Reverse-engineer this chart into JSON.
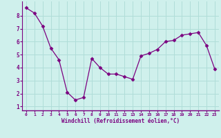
{
  "x": [
    0,
    1,
    2,
    3,
    4,
    5,
    6,
    7,
    8,
    9,
    10,
    11,
    12,
    13,
    14,
    15,
    16,
    17,
    18,
    19,
    20,
    21,
    22,
    23
  ],
  "y": [
    8.6,
    8.2,
    7.2,
    5.5,
    4.6,
    2.1,
    1.5,
    1.7,
    4.7,
    4.0,
    3.5,
    3.5,
    3.3,
    3.1,
    4.9,
    5.1,
    5.4,
    6.0,
    6.1,
    6.5,
    6.6,
    6.7,
    5.7,
    3.9
  ],
  "line_color": "#7B0080",
  "marker": "D",
  "marker_size": 2.5,
  "bg_color": "#cff0ec",
  "grid_color": "#b0ddd8",
  "xlabel": "Windchill (Refroidissement éolien,°C)",
  "xlim": [
    -0.5,
    23.5
  ],
  "ylim": [
    0.7,
    9.1
  ],
  "yticks": [
    1,
    2,
    3,
    4,
    5,
    6,
    7,
    8
  ],
  "xticks": [
    0,
    1,
    2,
    3,
    4,
    5,
    6,
    7,
    8,
    9,
    10,
    11,
    12,
    13,
    14,
    15,
    16,
    17,
    18,
    19,
    20,
    21,
    22,
    23
  ],
  "tick_color": "#7B0080",
  "label_color": "#7B0080",
  "spine_color": "#7B0080"
}
